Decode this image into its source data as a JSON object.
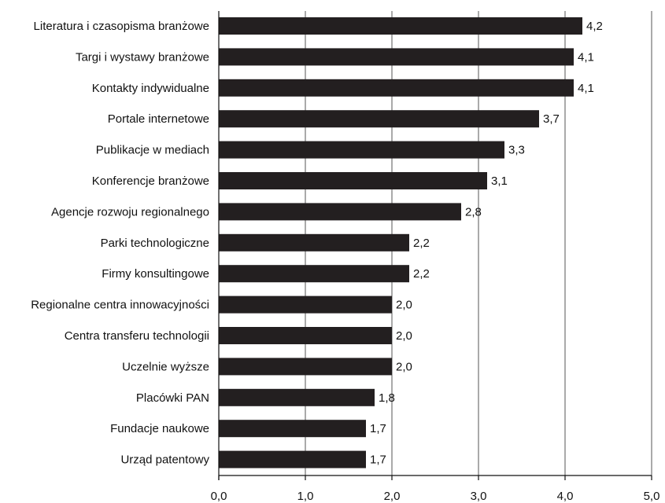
{
  "chart_data": {
    "type": "bar",
    "orientation": "horizontal",
    "categories": [
      "Literatura i czasopisma branżowe",
      "Targi i wystawy branżowe",
      "Kontakty indywidualne",
      "Portale internetowe",
      "Publikacje w mediach",
      "Konferencje branżowe",
      "Agencje rozwoju regionalnego",
      "Parki technologiczne",
      "Firmy konsultingowe",
      "Regionalne centra innowacyjności",
      "Centra transferu technologii",
      "Uczelnie wyższe",
      "Placówki PAN",
      "Fundacje naukowe",
      "Urząd patentowy"
    ],
    "values": [
      4.2,
      4.1,
      4.1,
      3.7,
      3.3,
      3.1,
      2.8,
      2.2,
      2.2,
      2.0,
      2.0,
      2.0,
      1.8,
      1.7,
      1.7
    ],
    "value_labels": [
      "4,2",
      "4,1",
      "4,1",
      "3,7",
      "3,3",
      "3,1",
      "2,8",
      "2,2",
      "2,2",
      "2,0",
      "2,0",
      "2,0",
      "1,8",
      "1,7",
      "1,7"
    ],
    "xlim": [
      0,
      5
    ],
    "xticks": [
      0,
      1,
      2,
      3,
      4,
      5
    ],
    "xtick_labels": [
      "0,0",
      "1,0",
      "2,0",
      "3,0",
      "4,0",
      "5,0"
    ],
    "grid": "vertical",
    "legend": "none",
    "colors": {
      "bar": "#231f20",
      "grid": "#555555",
      "axis": "#111111",
      "text": "#111111"
    }
  }
}
